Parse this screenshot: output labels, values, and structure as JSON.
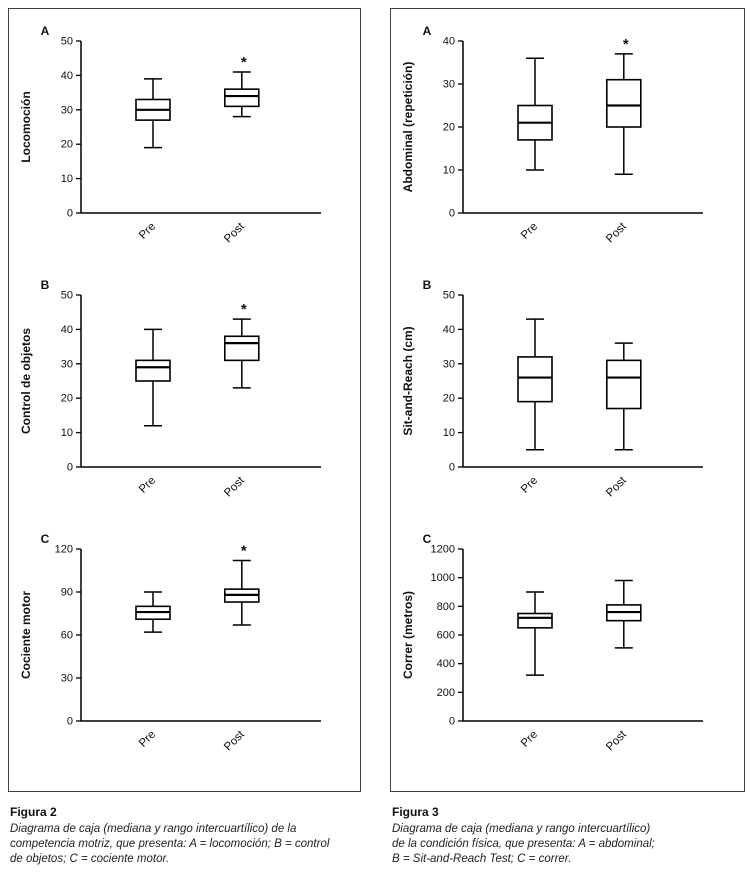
{
  "figures": [
    {
      "label": "Figura 2",
      "caption_lines": [
        "Diagrama de caja (mediana y rango intercuartílico) de la",
        "competencia motriz, que presenta: A = locomoción; B = control",
        "de objetos; C = cociente motor."
      ]
    },
    {
      "label": "Figura 3",
      "caption_lines": [
        "Diagrama de caja (mediana y rango intercuartílico)",
        "de la condición física, que presenta: A = abdominal;",
        "B = Sit-and-Reach Test; C = correr."
      ]
    }
  ],
  "colors": {
    "stroke": "#000000",
    "box_fill": "#ffffff"
  },
  "chart_data": [
    {
      "type": "box",
      "figure": "Figura 2",
      "host": "fig2",
      "sig_marker": "*",
      "panels": [
        {
          "panel": "A",
          "ylabel": "Locomoción",
          "ylim": [
            0,
            50
          ],
          "yticks": [
            0,
            10,
            20,
            30,
            40,
            50
          ],
          "categories": [
            "Pre",
            "Post"
          ],
          "boxes": [
            {
              "category": "Pre",
              "whisker_low": 19,
              "q1": 27,
              "median": 30,
              "q3": 33,
              "whisker_high": 39,
              "significant": false
            },
            {
              "category": "Post",
              "whisker_low": 28,
              "q1": 31,
              "median": 34,
              "q3": 36,
              "whisker_high": 41,
              "significant": true
            }
          ]
        },
        {
          "panel": "B",
          "ylabel": "Control de objetos",
          "ylim": [
            0,
            50
          ],
          "yticks": [
            0,
            10,
            20,
            30,
            40,
            50
          ],
          "categories": [
            "Pre",
            "Post"
          ],
          "boxes": [
            {
              "category": "Pre",
              "whisker_low": 12,
              "q1": 25,
              "median": 29,
              "q3": 31,
              "whisker_high": 40,
              "significant": false
            },
            {
              "category": "Post",
              "whisker_low": 23,
              "q1": 31,
              "median": 36,
              "q3": 38,
              "whisker_high": 43,
              "significant": true
            }
          ]
        },
        {
          "panel": "C",
          "ylabel": "Cociente motor",
          "ylim": [
            0,
            120
          ],
          "yticks": [
            0,
            30,
            60,
            90,
            120
          ],
          "categories": [
            "Pre",
            "Post"
          ],
          "boxes": [
            {
              "category": "Pre",
              "whisker_low": 62,
              "q1": 71,
              "median": 76,
              "q3": 80,
              "whisker_high": 90,
              "significant": false
            },
            {
              "category": "Post",
              "whisker_low": 67,
              "q1": 83,
              "median": 88,
              "q3": 92,
              "whisker_high": 112,
              "significant": true
            }
          ]
        }
      ]
    },
    {
      "type": "box",
      "figure": "Figura 3",
      "host": "fig3",
      "sig_marker": "*",
      "panels": [
        {
          "panel": "A",
          "ylabel": "Abdominal (repetición)",
          "ylim": [
            0,
            40
          ],
          "yticks": [
            0,
            10,
            20,
            30,
            40
          ],
          "categories": [
            "Pre",
            "Post"
          ],
          "boxes": [
            {
              "category": "Pre",
              "whisker_low": 10,
              "q1": 17,
              "median": 21,
              "q3": 25,
              "whisker_high": 36,
              "significant": false
            },
            {
              "category": "Post",
              "whisker_low": 9,
              "q1": 20,
              "median": 25,
              "q3": 31,
              "whisker_high": 37,
              "significant": true
            }
          ]
        },
        {
          "panel": "B",
          "ylabel": "Sit-and-Reach (cm)",
          "ylim": [
            0,
            50
          ],
          "yticks": [
            0,
            10,
            20,
            30,
            40,
            50
          ],
          "categories": [
            "Pre",
            "Post"
          ],
          "boxes": [
            {
              "category": "Pre",
              "whisker_low": 5,
              "q1": 19,
              "median": 26,
              "q3": 32,
              "whisker_high": 43,
              "significant": false
            },
            {
              "category": "Post",
              "whisker_low": 5,
              "q1": 17,
              "median": 26,
              "q3": 31,
              "whisker_high": 36,
              "significant": false
            }
          ]
        },
        {
          "panel": "C",
          "ylabel": "Correr (metros)",
          "ylim": [
            0,
            1200
          ],
          "yticks": [
            0,
            200,
            400,
            600,
            800,
            1000,
            1200
          ],
          "categories": [
            "Pre",
            "Post"
          ],
          "boxes": [
            {
              "category": "Pre",
              "whisker_low": 320,
              "q1": 650,
              "median": 720,
              "q3": 750,
              "whisker_high": 900,
              "significant": false
            },
            {
              "category": "Post",
              "whisker_low": 510,
              "q1": 700,
              "median": 760,
              "q3": 810,
              "whisker_high": 980,
              "significant": false
            }
          ]
        }
      ]
    }
  ]
}
